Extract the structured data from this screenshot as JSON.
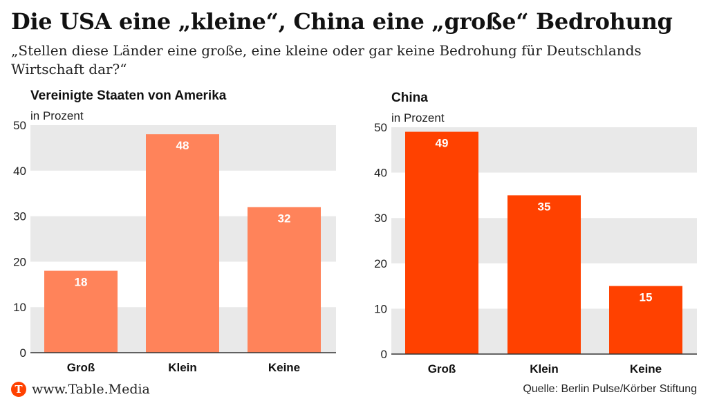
{
  "header": {
    "title": "Die USA eine „kleine“, China eine „große“ Bedrohung",
    "subtitle": "„Stellen diese Länder eine große, eine kleine oder gar keine Bedrohung für Deutschlands Wirtschaft dar?“"
  },
  "chart_data": [
    {
      "type": "bar",
      "title": "Vereinigte Staaten von Amerika",
      "ylabel": "in Prozent",
      "categories": [
        "Groß",
        "Klein",
        "Keine"
      ],
      "values": [
        18,
        48,
        32
      ],
      "ylim": [
        0,
        50
      ],
      "yticks": [
        0,
        10,
        20,
        30,
        40,
        50
      ],
      "color": "#ff835a",
      "grid_bands": true
    },
    {
      "type": "bar",
      "title": "China",
      "ylabel": "in Prozent",
      "categories": [
        "Groß",
        "Klein",
        "Keine"
      ],
      "values": [
        49,
        35,
        15
      ],
      "ylim": [
        0,
        50
      ],
      "yticks": [
        0,
        10,
        20,
        30,
        40,
        50
      ],
      "color": "#ff4100",
      "grid_bands": true
    }
  ],
  "footer": {
    "logo_letter": "T",
    "site": "www.Table.Media",
    "source": "Quelle: Berlin Pulse/Körber Stiftung",
    "brand_color": "#ff4100"
  }
}
